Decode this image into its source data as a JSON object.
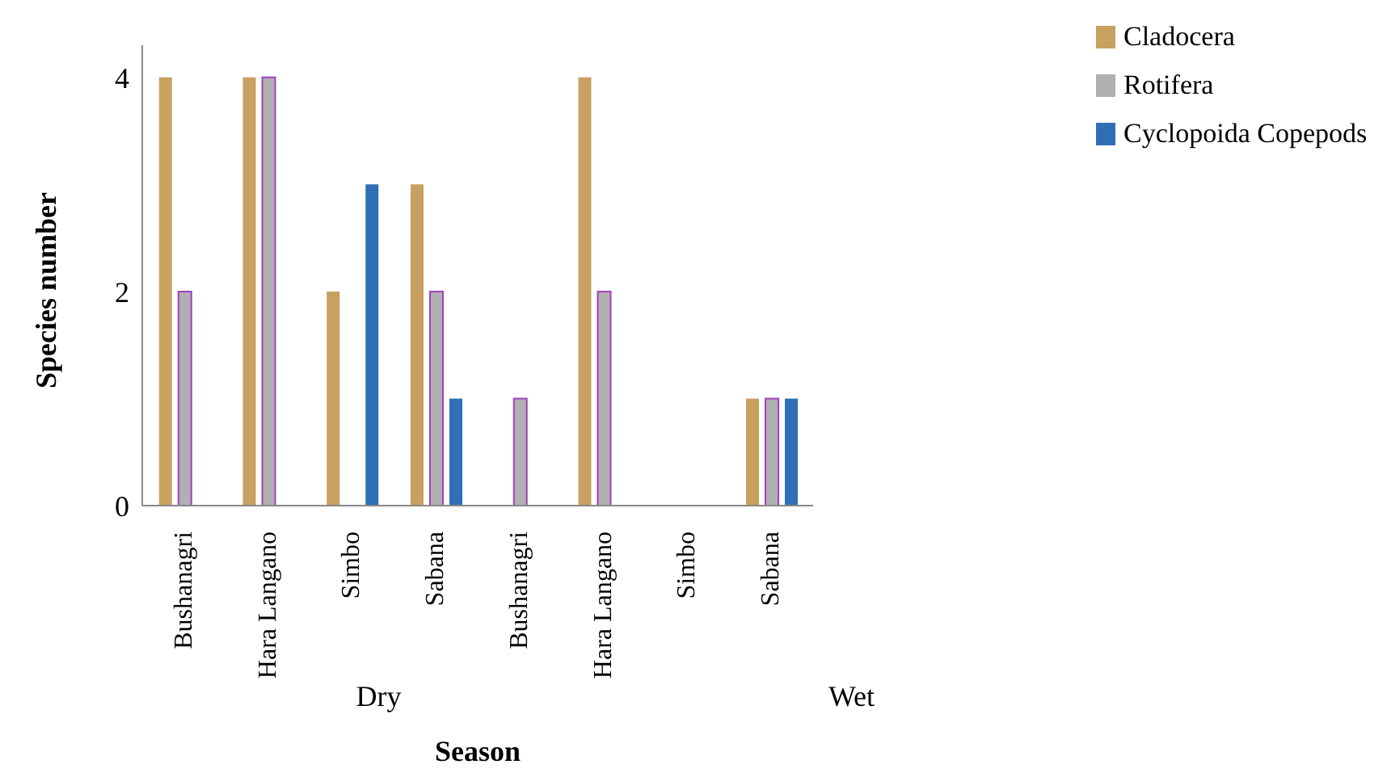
{
  "chart_data": {
    "type": "bar",
    "xlabel": "Season",
    "ylabel": "Species number",
    "categories": [
      "Bushanagri",
      "Hara Langano",
      "Simbo",
      "Sabana",
      "Bushanagri",
      "Hara Langano",
      "Simbo",
      "Sabana"
    ],
    "series": [
      {
        "name": "Cladocera",
        "color": "#c8a060",
        "values": [
          4,
          4,
          2,
          3,
          0,
          4,
          0,
          1
        ]
      },
      {
        "name": "Rotifera",
        "color": "#b0b0b0",
        "values": [
          2,
          4,
          0,
          2,
          1,
          2,
          0,
          1
        ]
      },
      {
        "name": "Cyclopoida Copepods",
        "color": "#2e6fb5",
        "values": [
          0,
          0,
          3,
          1,
          0,
          0,
          0,
          1
        ]
      }
    ],
    "annotations": [
      "Dry",
      "Wet"
    ],
    "ylim": [
      0,
      4.3
    ],
    "yticks": [
      0,
      2,
      4
    ],
    "grid": false,
    "legend": "top right"
  }
}
